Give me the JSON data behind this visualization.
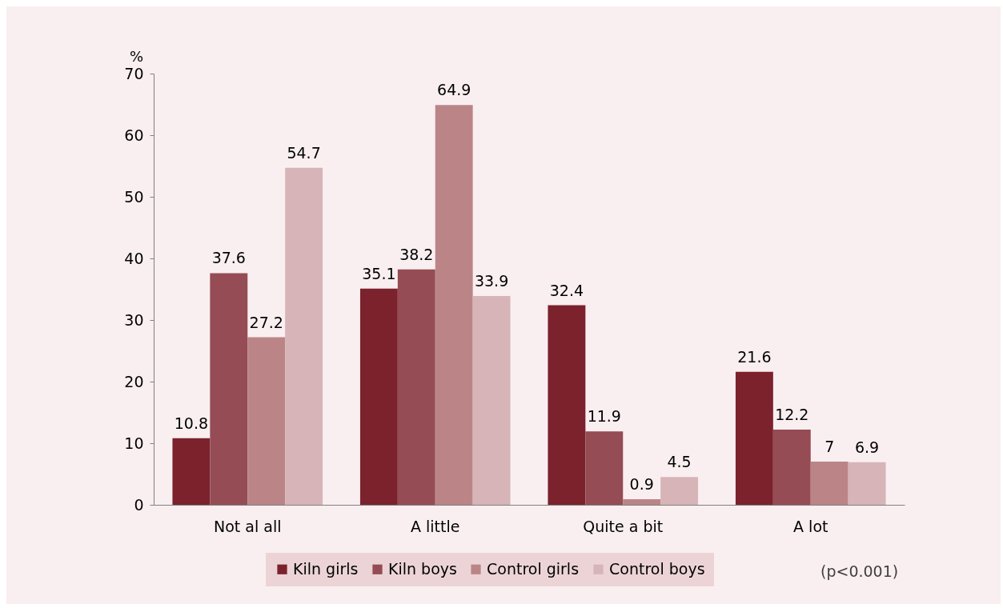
{
  "chart_data": {
    "type": "bar",
    "ylabel": "%",
    "categories": [
      "Not al all",
      "A little",
      "Quite a bit",
      "A lot"
    ],
    "series": [
      {
        "name": "Kiln girls",
        "color": "#7b222d",
        "values": [
          10.8,
          35.1,
          32.4,
          21.6
        ]
      },
      {
        "name": "Kiln boys",
        "color": "#954c54",
        "values": [
          37.6,
          38.2,
          11.9,
          12.2
        ]
      },
      {
        "name": "Control girls",
        "color": "#bb8587",
        "values": [
          27.2,
          64.9,
          0.9,
          7
        ]
      },
      {
        "name": "Control boys",
        "color": "#d7b4b8",
        "values": [
          54.7,
          33.9,
          4.5,
          6.9
        ]
      }
    ],
    "ylim": [
      0,
      70
    ],
    "yticks": [
      0,
      10,
      20,
      30,
      40,
      50,
      60,
      70
    ],
    "grid": false,
    "legend": "bottom",
    "data_labels": true,
    "annotations": [
      "(p<0.001)"
    ]
  }
}
